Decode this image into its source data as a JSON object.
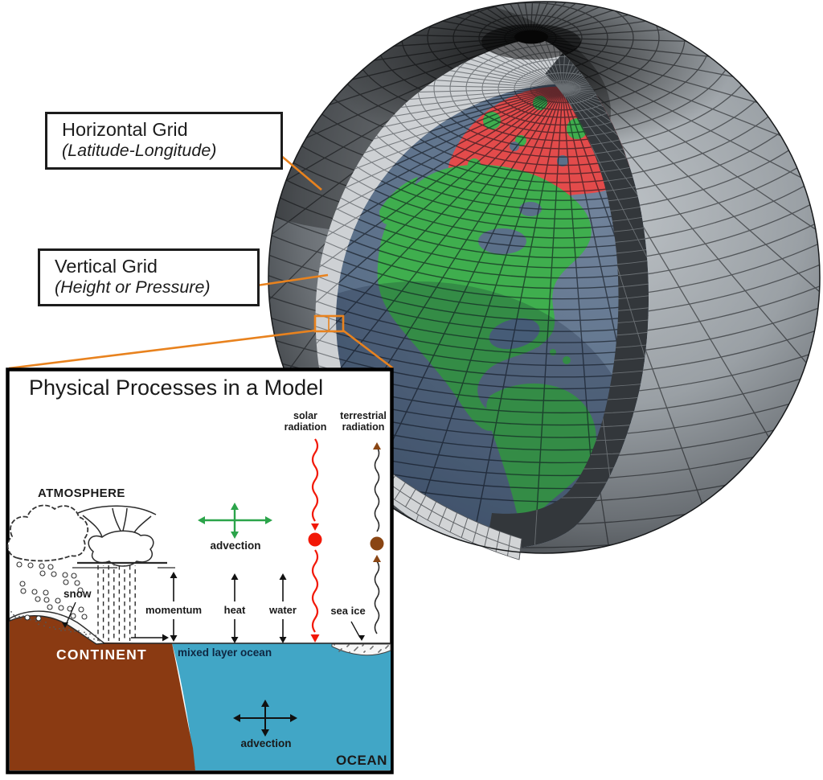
{
  "callouts": {
    "horizontal": {
      "title": "Horizontal Grid",
      "subtitle": "(Latitude-Longitude)"
    },
    "vertical": {
      "title": "Vertical Grid",
      "subtitle": "(Height or Pressure)"
    }
  },
  "inset": {
    "title": "Physical Processes in a Model",
    "atmosphere_label": "ATMOSPHERE",
    "snow_label": "snow",
    "advection_air_label": "advection",
    "solar_label_line1": "solar",
    "solar_label_line2": "radiation",
    "terrestrial_label_line1": "terrestrial",
    "terrestrial_label_line2": "radiation",
    "momentum_label": "momentum",
    "heat_label": "heat",
    "water_label": "water",
    "sea_ice_label": "sea ice",
    "continent_label": "CONTINENT",
    "mixed_layer_label": "mixed layer ocean",
    "advection_ocean_label": "advection",
    "ocean_label": "OCEAN"
  },
  "colors": {
    "accent_orange": "#e8821e",
    "solar_red": "#f21807",
    "terrestrial_brown": "#8a4513",
    "advection_green": "#2ba44a",
    "continent_brown": "#8a3a12",
    "inset_ocean_blue": "#41a6c6",
    "land_green": "#3fae4e",
    "arctic_red": "#e34b4b",
    "globe_ocean_slate": "#5b7089",
    "shell_light_gray": "#ced1d4",
    "cut_face_dark": "#33373b",
    "mixed_layer_text": "#0e2742",
    "ink": "#1a1a1a"
  }
}
